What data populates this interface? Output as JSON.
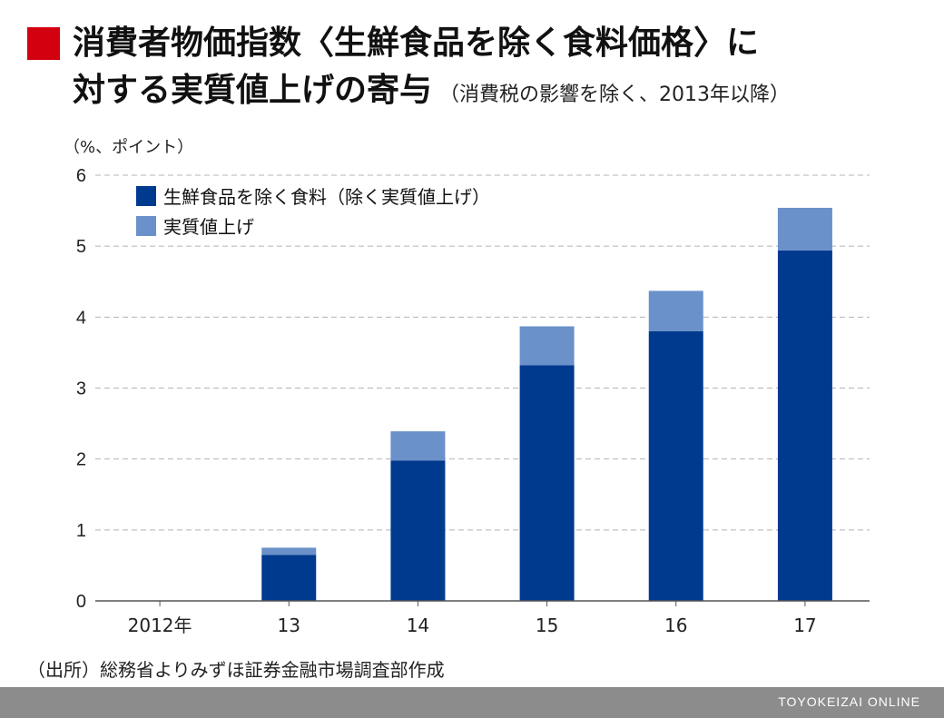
{
  "header": {
    "title_line1": "消費者物価指数〈生鮮食品を除く食料価格〉に",
    "title_line2": "対する実質値上げの寄与",
    "subtitle": "（消費税の影響を除く、2013年以降）"
  },
  "chart_data": {
    "type": "bar",
    "stacked": true,
    "unit_label": "（%、ポイント）",
    "categories": [
      "2012年",
      "13",
      "14",
      "15",
      "16",
      "17"
    ],
    "series": [
      {
        "name": "生鮮食品を除く食料（除く実質値上げ）",
        "color": "#003a8f",
        "values": [
          0,
          0.65,
          1.98,
          3.32,
          3.8,
          4.94
        ]
      },
      {
        "name": "実質値上げ",
        "color": "#6a91c9",
        "values": [
          0,
          0.1,
          0.41,
          0.55,
          0.57,
          0.6
        ]
      }
    ],
    "ylim": [
      0,
      6
    ],
    "yticks": [
      0,
      1,
      2,
      3,
      4,
      5,
      6
    ],
    "grid": true,
    "legend_position": "top-left"
  },
  "source": "（出所）総務省よりみずほ証券金融市場調査部作成",
  "footer": {
    "brand": "TOYOKEIZAI ONLINE",
    "bar_color": "#8c8c8c"
  },
  "colors": {
    "accent": "#d3000f"
  }
}
